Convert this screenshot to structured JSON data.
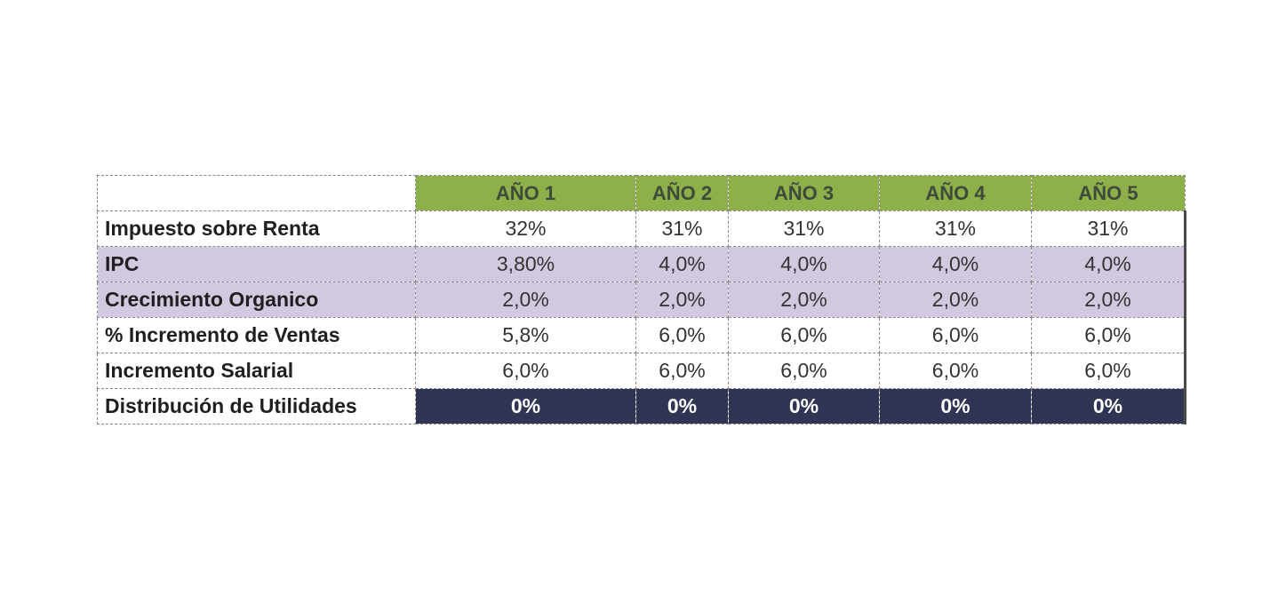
{
  "table": {
    "headers": [
      "AÑO 1",
      "AÑO 2",
      "AÑO 3",
      "AÑO 4",
      "AÑO 5"
    ],
    "rows": [
      {
        "label": "Impuesto sobre Renta",
        "values": [
          "32%",
          "31%",
          "31%",
          "31%",
          "31%"
        ]
      },
      {
        "label": "IPC",
        "values": [
          "3,80%",
          "4,0%",
          "4,0%",
          "4,0%",
          "4,0%"
        ]
      },
      {
        "label": "Crecimiento Organico",
        "values": [
          "2,0%",
          "2,0%",
          "2,0%",
          "2,0%",
          "2,0%"
        ]
      },
      {
        "label": "% Incremento de Ventas",
        "values": [
          "5,8%",
          "6,0%",
          "6,0%",
          "6,0%",
          "6,0%"
        ]
      },
      {
        "label": "Incremento Salarial",
        "values": [
          "6,0%",
          "6,0%",
          "6,0%",
          "6,0%",
          "6,0%"
        ]
      },
      {
        "label": "Distribución de Utilidades",
        "values": [
          "0%",
          "0%",
          "0%",
          "0%",
          "0%"
        ]
      }
    ]
  },
  "colors": {
    "header_green": "#8db04a",
    "row_purple": "#d2c8e0",
    "row_navy": "#2f3553"
  }
}
